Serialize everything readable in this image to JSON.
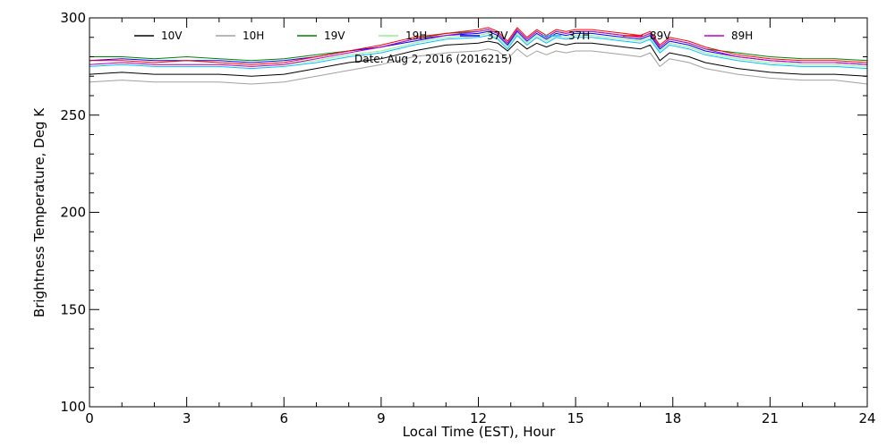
{
  "chart_data": {
    "type": "line",
    "title": "",
    "date_label": "Date: Aug  2, 2016 (2016215)",
    "xlabel": "Local Time (EST), Hour",
    "ylabel": "Brightness Temperature, Deg  K",
    "xlim": [
      0,
      24
    ],
    "ylim": [
      100,
      300
    ],
    "xticks": [
      0,
      3,
      6,
      9,
      12,
      15,
      18,
      21,
      24
    ],
    "yticks": [
      100,
      150,
      200,
      250,
      300
    ],
    "grid": false,
    "legend_position": "top",
    "x": [
      0,
      1,
      2,
      3,
      4,
      5,
      6,
      7,
      8,
      9,
      10,
      11,
      12,
      12.3,
      12.6,
      12.9,
      13.2,
      13.5,
      13.8,
      14.1,
      14.4,
      14.7,
      15,
      15.5,
      16,
      16.5,
      17,
      17.3,
      17.6,
      17.9,
      18.5,
      19,
      20,
      21,
      22,
      23,
      24
    ],
    "series": [
      {
        "name": "10V",
        "color": "#000000",
        "values": [
          271,
          272,
          271,
          271,
          271,
          270,
          271,
          274,
          277,
          279,
          283,
          286,
          287,
          288,
          287,
          283,
          288,
          284,
          287,
          285,
          287,
          286,
          287,
          287,
          286,
          285,
          284,
          286,
          278,
          282,
          280,
          277,
          274,
          272,
          271,
          271,
          270
        ]
      },
      {
        "name": "10H",
        "color": "#a0a0a0",
        "values": [
          267,
          268,
          267,
          267,
          267,
          266,
          267,
          270,
          273,
          276,
          280,
          282,
          283,
          284,
          283,
          279,
          284,
          280,
          283,
          281,
          283,
          282,
          283,
          283,
          282,
          281,
          280,
          282,
          275,
          279,
          277,
          274,
          271,
          269,
          268,
          268,
          266
        ]
      },
      {
        "name": "19V",
        "color": "#008000",
        "values": [
          280,
          280,
          279,
          280,
          279,
          278,
          279,
          281,
          283,
          285,
          289,
          292,
          293,
          294,
          292,
          287,
          294,
          289,
          293,
          290,
          293,
          292,
          293,
          293,
          292,
          291,
          290,
          292,
          285,
          289,
          287,
          284,
          282,
          280,
          279,
          279,
          278
        ]
      },
      {
        "name": "19H",
        "color": "#90ee90",
        "values": [
          276,
          277,
          276,
          276,
          276,
          275,
          276,
          278,
          281,
          283,
          287,
          290,
          291,
          292,
          290,
          285,
          292,
          287,
          291,
          288,
          291,
          290,
          291,
          291,
          290,
          289,
          288,
          290,
          283,
          287,
          285,
          282,
          279,
          277,
          276,
          276,
          275
        ]
      },
      {
        "name": "37V",
        "color": "#0000ff",
        "values": [
          278,
          279,
          278,
          278,
          278,
          277,
          278,
          280,
          283,
          285,
          288,
          291,
          292,
          293,
          291,
          286,
          293,
          288,
          292,
          289,
          292,
          291,
          292,
          292,
          291,
          290,
          289,
          291,
          284,
          288,
          286,
          283,
          280,
          278,
          277,
          277,
          276
        ]
      },
      {
        "name": "37H",
        "color": "#00bfff",
        "values": [
          275,
          276,
          275,
          275,
          275,
          274,
          275,
          277,
          280,
          282,
          286,
          289,
          290,
          291,
          289,
          284,
          291,
          286,
          290,
          287,
          290,
          289,
          290,
          290,
          289,
          288,
          287,
          289,
          282,
          286,
          284,
          281,
          278,
          276,
          275,
          275,
          274
        ]
      },
      {
        "name": "89V",
        "color": "#ff0000",
        "values": [
          278,
          278,
          277,
          278,
          277,
          276,
          277,
          280,
          283,
          286,
          290,
          292,
          294,
          295,
          293,
          288,
          295,
          290,
          294,
          291,
          294,
          293,
          294,
          294,
          293,
          292,
          291,
          293,
          286,
          290,
          288,
          285,
          281,
          279,
          278,
          278,
          277
        ]
      },
      {
        "name": "89H",
        "color": "#c000c0",
        "values": [
          276,
          277,
          276,
          276,
          276,
          275,
          276,
          279,
          282,
          285,
          289,
          291,
          293,
          294,
          292,
          287,
          294,
          289,
          293,
          290,
          293,
          292,
          293,
          293,
          292,
          291,
          290,
          292,
          285,
          289,
          287,
          284,
          280,
          278,
          277,
          277,
          276
        ]
      }
    ]
  }
}
